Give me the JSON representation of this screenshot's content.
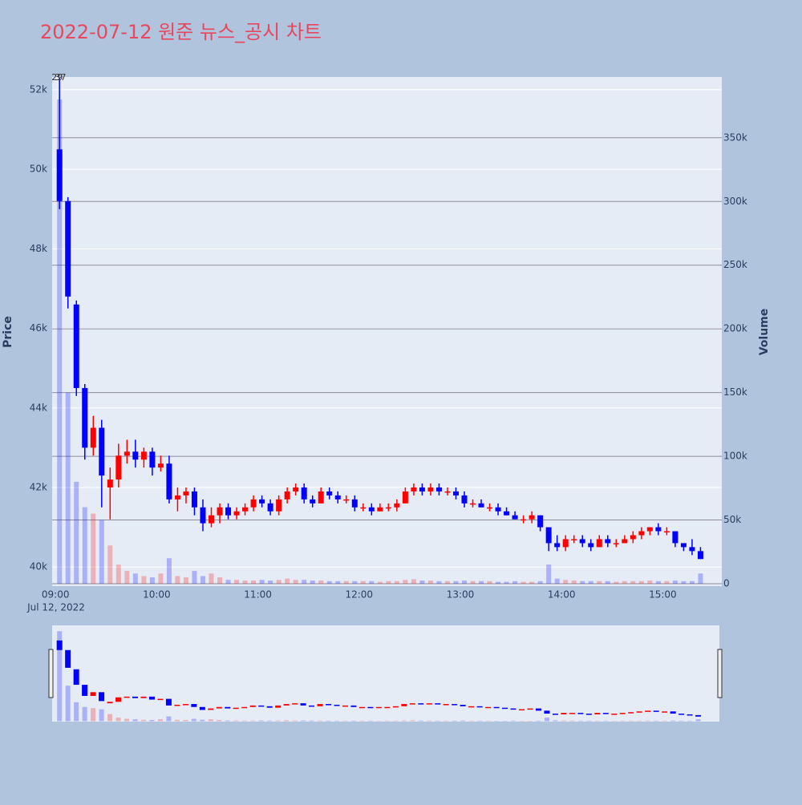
{
  "chart_data": {
    "type": "candlestick",
    "title": "2022-07-12 원준 뉴스_공시 차트",
    "y_title": "Price",
    "y2_title": "Volume",
    "x_date_label": "Jul 12, 2022",
    "up_color": "#ff0000",
    "down_color": "#0000ff",
    "grid": true,
    "range_slider": true,
    "x": [
      "09:00",
      "09:05",
      "09:10",
      "09:15",
      "09:20",
      "09:25",
      "09:30",
      "09:35",
      "09:40",
      "09:45",
      "09:50",
      "09:55",
      "10:00",
      "10:05",
      "10:10",
      "10:15",
      "10:20",
      "10:25",
      "10:30",
      "10:35",
      "10:40",
      "10:45",
      "10:50",
      "10:55",
      "11:00",
      "11:05",
      "11:10",
      "11:15",
      "11:20",
      "11:25",
      "11:30",
      "11:35",
      "11:40",
      "11:45",
      "11:50",
      "11:55",
      "12:00",
      "12:05",
      "12:10",
      "12:15",
      "12:20",
      "12:25",
      "12:30",
      "12:35",
      "12:40",
      "12:45",
      "12:50",
      "12:55",
      "13:00",
      "13:05",
      "13:10",
      "13:15",
      "13:20",
      "13:25",
      "13:30",
      "13:35",
      "13:40",
      "13:45",
      "13:50",
      "13:55",
      "14:00",
      "14:05",
      "14:10",
      "14:15",
      "14:20",
      "14:25",
      "14:30",
      "14:35",
      "14:40",
      "14:45",
      "14:50",
      "14:55",
      "15:00",
      "15:05",
      "15:10",
      "15:15",
      "15:20"
    ],
    "open": [
      50500,
      49200,
      46600,
      44500,
      43000,
      43500,
      42000,
      42200,
      42800,
      42900,
      42700,
      42900,
      42500,
      42600,
      41700,
      41800,
      41900,
      41500,
      41100,
      41300,
      41500,
      41300,
      41400,
      41500,
      41700,
      41600,
      41400,
      41700,
      41900,
      42000,
      41700,
      41600,
      41900,
      41800,
      41700,
      41700,
      41500,
      41500,
      41400,
      41500,
      41500,
      41600,
      41900,
      42000,
      41900,
      42000,
      41900,
      41900,
      41800,
      41600,
      41600,
      41500,
      41500,
      41400,
      41300,
      41200,
      41200,
      41300,
      41000,
      40600,
      40500,
      40700,
      40700,
      40600,
      40500,
      40700,
      40600,
      40600,
      40700,
      40800,
      40900,
      41000,
      40900,
      40900,
      40600,
      40500,
      40400
    ],
    "high": [
      52300,
      49300,
      46700,
      44600,
      43800,
      43700,
      42500,
      43100,
      43200,
      43200,
      43000,
      43000,
      42800,
      42800,
      42000,
      42000,
      42000,
      41700,
      41500,
      41600,
      41600,
      41500,
      41600,
      41800,
      41800,
      41700,
      41800,
      42000,
      42100,
      42100,
      41800,
      42000,
      42000,
      41900,
      41800,
      41800,
      41600,
      41600,
      41600,
      41600,
      41700,
      42000,
      42100,
      42100,
      42100,
      42100,
      42000,
      42000,
      41900,
      41700,
      41700,
      41600,
      41600,
      41500,
      41400,
      41300,
      41400,
      41300,
      41000,
      40800,
      40800,
      40800,
      40800,
      40700,
      40800,
      40800,
      40700,
      40800,
      40900,
      41000,
      41000,
      41100,
      41000,
      40900,
      40600,
      40700,
      40500
    ],
    "low": [
      49000,
      46500,
      44300,
      42700,
      42800,
      41500,
      41200,
      42000,
      42600,
      42500,
      42500,
      42300,
      42400,
      41600,
      41400,
      41600,
      41300,
      40900,
      41000,
      41100,
      41200,
      41200,
      41300,
      41400,
      41500,
      41300,
      41300,
      41600,
      41800,
      41600,
      41500,
      41600,
      41700,
      41600,
      41600,
      41400,
      41400,
      41300,
      41400,
      41400,
      41400,
      41600,
      41800,
      41800,
      41800,
      41800,
      41800,
      41700,
      41500,
      41500,
      41500,
      41400,
      41300,
      41300,
      41200,
      41100,
      41100,
      40900,
      40400,
      40400,
      40400,
      40600,
      40500,
      40400,
      40500,
      40500,
      40500,
      40600,
      40600,
      40700,
      40800,
      40800,
      40800,
      40500,
      40400,
      40300,
      40200
    ],
    "close": [
      49200,
      46800,
      44500,
      43000,
      43500,
      42300,
      42200,
      42800,
      42900,
      42700,
      42900,
      42500,
      42600,
      41700,
      41800,
      41900,
      41500,
      41100,
      41300,
      41500,
      41300,
      41400,
      41500,
      41700,
      41600,
      41400,
      41700,
      41900,
      42000,
      41700,
      41600,
      41900,
      41800,
      41700,
      41700,
      41500,
      41500,
      41400,
      41500,
      41500,
      41600,
      41900,
      42000,
      41900,
      42000,
      41900,
      41900,
      41800,
      41600,
      41600,
      41500,
      41500,
      41400,
      41300,
      41200,
      41200,
      41300,
      41000,
      40600,
      40500,
      40700,
      40700,
      40600,
      40500,
      40700,
      40600,
      40600,
      40700,
      40800,
      40900,
      41000,
      40900,
      40900,
      40600,
      40500,
      40400,
      40200
    ],
    "volume": [
      380000,
      150000,
      80000,
      60000,
      55000,
      50000,
      30000,
      15000,
      10000,
      8000,
      6000,
      5000,
      8000,
      20000,
      6000,
      5000,
      10000,
      6000,
      8000,
      5000,
      3000,
      3000,
      2500,
      2500,
      3000,
      2500,
      3000,
      4000,
      3000,
      3000,
      2500,
      2500,
      2000,
      2000,
      2000,
      2000,
      2000,
      2000,
      1500,
      2000,
      2000,
      3000,
      3500,
      2500,
      2500,
      2000,
      2000,
      2000,
      2500,
      2000,
      2000,
      2000,
      1500,
      1500,
      2000,
      1500,
      1500,
      2000,
      15000,
      4000,
      3000,
      2500,
      2000,
      2000,
      2000,
      2000,
      1500,
      2000,
      2000,
      2000,
      2500,
      2000,
      2000,
      2500,
      2000,
      2000,
      8000
    ],
    "annotations": [
      {
        "x": "09:01",
        "text": "29"
      },
      {
        "x": "09:03",
        "text": "37"
      }
    ],
    "xlim": [
      "08:58",
      "15:35"
    ],
    "xticks": [
      "09:00",
      "10:00",
      "11:00",
      "12:00",
      "13:00",
      "14:00",
      "15:00"
    ],
    "ylim": [
      39520,
      52320
    ],
    "yticks": [
      {
        "value": 40000,
        "label": "40k"
      },
      {
        "value": 42000,
        "label": "42k"
      },
      {
        "value": 44000,
        "label": "44k"
      },
      {
        "value": 46000,
        "label": "46k"
      },
      {
        "value": 48000,
        "label": "48k"
      },
      {
        "value": 50000,
        "label": "50k"
      },
      {
        "value": 52000,
        "label": "52k"
      }
    ],
    "y2lim": [
      -1900,
      397700
    ],
    "y2ticks": [
      0,
      {
        "value": 50000,
        "label": "50k"
      },
      {
        "value": 100000,
        "label": "100k"
      },
      {
        "value": 150000,
        "label": "150k"
      },
      {
        "value": 200000,
        "label": "200k"
      },
      {
        "value": 250000,
        "label": "250k"
      },
      {
        "value": 300000,
        "label": "300k"
      },
      {
        "value": 350000,
        "label": "350k"
      }
    ]
  }
}
